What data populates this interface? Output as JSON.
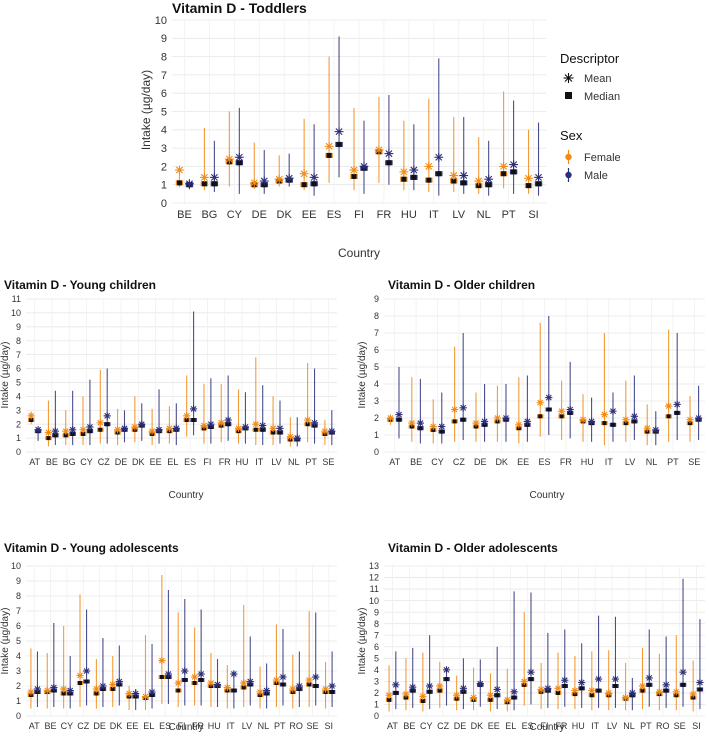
{
  "figure": {
    "description": "Vitamin D intake by country, sex and descriptor across five age groups"
  },
  "legend": {
    "descriptor_title": "Descriptor",
    "mean_label": "Mean",
    "median_label": "Median",
    "sex_title": "Sex",
    "female_label": "Female",
    "male_label": "Male"
  },
  "colors": {
    "female": "#f28a16",
    "male": "#2c2f7a",
    "grid": "#e6e6e6"
  },
  "chart_data": [
    {
      "type": "error-bar scatter",
      "title": "Vitamin D - Toddlers",
      "xlabel": "Country",
      "ylabel": "Intake (µg/day)",
      "ylim": [
        0,
        10
      ],
      "yticks": [
        0,
        1,
        2,
        3,
        4,
        5,
        6,
        7,
        8,
        9,
        10
      ],
      "categories": [
        "BE",
        "BG",
        "CY",
        "DE",
        "DK",
        "EE",
        "ES",
        "FI",
        "FR",
        "HU",
        "IT",
        "LV",
        "NL",
        "PT",
        "SI"
      ],
      "series": [
        {
          "name": "Female",
          "median": [
            1.1,
            1.05,
            2.25,
            1.0,
            1.2,
            1.0,
            2.6,
            1.45,
            2.8,
            1.3,
            1.25,
            1.2,
            0.95,
            1.6,
            0.95
          ],
          "mean": [
            1.8,
            1.4,
            2.4,
            1.1,
            1.3,
            1.6,
            3.1,
            1.8,
            2.9,
            1.7,
            2.0,
            1.5,
            1.2,
            2.0,
            1.35
          ],
          "low": [
            0.85,
            0.7,
            0.9,
            0.75,
            0.9,
            0.7,
            1.1,
            0.7,
            1.1,
            0.7,
            0.6,
            0.6,
            0.5,
            0.8,
            0.5
          ],
          "high": [
            1.9,
            4.1,
            5.0,
            3.3,
            2.6,
            4.6,
            8.0,
            5.2,
            5.8,
            4.5,
            5.7,
            4.7,
            3.6,
            6.1,
            4.0
          ]
        },
        {
          "name": "Male",
          "median": [
            1.0,
            1.05,
            2.2,
            1.0,
            1.25,
            1.05,
            3.2,
            1.9,
            2.2,
            1.4,
            1.6,
            1.1,
            1.0,
            1.7,
            1.05
          ],
          "mean": [
            1.05,
            1.4,
            2.5,
            1.2,
            1.35,
            1.4,
            3.9,
            2.0,
            2.7,
            1.8,
            2.5,
            1.5,
            1.3,
            2.1,
            1.4
          ],
          "low": [
            0.75,
            0.6,
            0.5,
            0.5,
            0.9,
            0.4,
            1.4,
            0.5,
            1.0,
            0.7,
            0.4,
            0.5,
            0.4,
            0.5,
            0.4
          ],
          "high": [
            1.3,
            3.4,
            5.2,
            2.9,
            2.7,
            4.3,
            9.1,
            4.5,
            5.9,
            4.3,
            7.9,
            4.7,
            3.4,
            5.6,
            4.4
          ]
        }
      ]
    },
    {
      "type": "error-bar scatter",
      "title": "Vitamin D - Young children",
      "xlabel": "Country",
      "ylabel": "Intake (µg/day)",
      "ylim": [
        0,
        11
      ],
      "yticks": [
        0,
        1,
        2,
        3,
        4,
        5,
        6,
        7,
        8,
        9,
        10,
        11
      ],
      "categories": [
        "AT",
        "BE",
        "BG",
        "CY",
        "CZ",
        "DE",
        "DK",
        "EE",
        "EL",
        "ES",
        "FI",
        "FR",
        "HU",
        "IT",
        "LV",
        "NL",
        "PT",
        "SE"
      ],
      "series": [
        {
          "name": "Female",
          "median": [
            2.3,
            1.0,
            1.2,
            1.3,
            1.6,
            1.4,
            1.6,
            1.3,
            1.5,
            2.3,
            1.7,
            1.9,
            1.5,
            1.6,
            1.4,
            0.9,
            2.0,
            1.3
          ],
          "mean": [
            2.6,
            1.4,
            1.5,
            1.6,
            2.1,
            1.6,
            1.8,
            1.5,
            1.7,
            2.6,
            1.9,
            2.1,
            1.7,
            2.0,
            1.7,
            1.1,
            2.3,
            1.5
          ],
          "low": [
            2.0,
            0.4,
            0.5,
            0.5,
            0.6,
            0.5,
            0.7,
            0.5,
            0.6,
            1.1,
            0.6,
            0.7,
            0.6,
            0.5,
            0.5,
            0.4,
            0.7,
            0.5
          ],
          "high": [
            2.9,
            3.7,
            3.0,
            4.0,
            5.9,
            3.1,
            4.0,
            3.1,
            3.3,
            5.5,
            4.9,
            4.9,
            4.5,
            6.8,
            4.0,
            2.5,
            6.4,
            2.3
          ]
        },
        {
          "name": "Male",
          "median": [
            1.5,
            1.2,
            1.3,
            1.5,
            2.0,
            1.6,
            1.9,
            1.5,
            1.6,
            2.3,
            1.8,
            2.0,
            1.7,
            1.6,
            1.4,
            0.9,
            1.9,
            1.4
          ],
          "mean": [
            1.6,
            1.5,
            1.6,
            1.8,
            2.6,
            1.7,
            2.0,
            1.6,
            1.7,
            3.1,
            2.0,
            2.3,
            1.8,
            1.9,
            1.7,
            1.0,
            2.1,
            1.5
          ],
          "low": [
            0.8,
            0.5,
            0.5,
            0.5,
            0.6,
            0.7,
            0.8,
            0.6,
            0.5,
            1.2,
            0.6,
            0.8,
            0.6,
            0.5,
            0.6,
            0.4,
            0.6,
            0.5
          ],
          "high": [
            1.8,
            4.4,
            4.4,
            5.2,
            6.0,
            3.0,
            3.5,
            4.5,
            3.5,
            10.1,
            5.3,
            5.5,
            4.3,
            4.8,
            3.7,
            2.5,
            6.0,
            3.0
          ]
        }
      ]
    },
    {
      "type": "error-bar scatter",
      "title": "Vitamin D - Older children",
      "xlabel": "Country",
      "ylabel": "Intake (µg/day)",
      "ylim": [
        0,
        9
      ],
      "yticks": [
        0,
        1,
        2,
        3,
        4,
        5,
        6,
        7,
        8,
        9
      ],
      "categories": [
        "AT",
        "BE",
        "CY",
        "CZ",
        "DE",
        "DK",
        "EE",
        "ES",
        "FR",
        "HU",
        "IT",
        "LV",
        "NL",
        "PT",
        "SE"
      ],
      "series": [
        {
          "name": "Female",
          "median": [
            1.9,
            1.5,
            1.3,
            1.8,
            1.5,
            1.8,
            1.4,
            2.1,
            2.1,
            1.8,
            1.7,
            1.7,
            1.2,
            2.1,
            1.7
          ],
          "mean": [
            2.0,
            1.7,
            1.5,
            2.5,
            1.7,
            2.0,
            1.6,
            2.9,
            2.4,
            1.9,
            2.2,
            1.9,
            1.4,
            2.7,
            1.9
          ],
          "low": [
            1.6,
            0.6,
            0.5,
            0.6,
            0.6,
            0.6,
            0.5,
            0.9,
            0.7,
            0.6,
            0.4,
            0.6,
            0.4,
            0.6,
            0.6
          ],
          "high": [
            2.2,
            4.4,
            3.1,
            6.2,
            3.5,
            3.9,
            4.4,
            7.6,
            4.2,
            3.4,
            7.0,
            4.2,
            2.8,
            7.2,
            3.3
          ]
        },
        {
          "name": "Male",
          "median": [
            1.9,
            1.4,
            1.2,
            1.9,
            1.6,
            1.9,
            1.6,
            2.5,
            2.3,
            1.7,
            1.6,
            1.8,
            1.2,
            2.3,
            1.9
          ],
          "mean": [
            2.2,
            1.7,
            1.5,
            2.6,
            1.8,
            2.0,
            1.8,
            3.2,
            2.5,
            1.8,
            2.4,
            2.1,
            1.3,
            2.8,
            2.0
          ],
          "low": [
            0.8,
            0.5,
            0.5,
            0.7,
            0.6,
            0.6,
            0.6,
            1.0,
            0.8,
            0.6,
            0.6,
            0.7,
            0.4,
            0.7,
            0.7
          ],
          "high": [
            5.0,
            4.3,
            3.5,
            7.0,
            4.0,
            4.0,
            4.5,
            8.0,
            5.3,
            3.2,
            3.5,
            4.5,
            2.4,
            7.0,
            3.9
          ]
        }
      ]
    },
    {
      "type": "error-bar scatter",
      "title": "Vitamin D - Young adolescents",
      "xlabel": "Country",
      "ylabel": "Intake (µg/day)",
      "ylim": [
        0,
        10
      ],
      "yticks": [
        0,
        1,
        2,
        3,
        4,
        5,
        6,
        7,
        8,
        9,
        10
      ],
      "categories": [
        "AT",
        "BE",
        "CY",
        "CZ",
        "DE",
        "DK",
        "EE",
        "EL",
        "ES",
        "FI",
        "FR",
        "HU",
        "IT",
        "LV",
        "NL",
        "PT",
        "RO",
        "SE",
        "SI"
      ],
      "series": [
        {
          "name": "Female",
          "median": [
            1.4,
            1.6,
            1.5,
            2.2,
            1.5,
            1.8,
            1.3,
            1.2,
            2.6,
            1.7,
            2.2,
            2.0,
            1.7,
            1.9,
            1.4,
            2.2,
            1.6,
            2.1,
            1.6
          ],
          "mean": [
            1.6,
            1.7,
            1.8,
            2.7,
            1.8,
            2.1,
            1.5,
            1.3,
            3.7,
            2.2,
            2.6,
            2.2,
            1.9,
            2.2,
            1.6,
            2.4,
            1.8,
            2.4,
            1.8
          ],
          "low": [
            0.5,
            0.5,
            0.5,
            0.6,
            0.5,
            0.6,
            0.4,
            0.4,
            0.8,
            0.6,
            0.7,
            0.6,
            0.5,
            0.6,
            0.5,
            0.6,
            0.5,
            0.6,
            0.5
          ],
          "high": [
            4.5,
            4.2,
            6.0,
            8.1,
            3.8,
            4.0,
            2.0,
            5.4,
            9.4,
            6.9,
            5.9,
            4.2,
            3.4,
            7.4,
            3.3,
            6.1,
            4.1,
            7.0,
            3.6
          ]
        },
        {
          "name": "Male",
          "median": [
            1.6,
            1.7,
            1.5,
            2.3,
            1.8,
            2.1,
            1.3,
            1.4,
            2.6,
            2.4,
            2.4,
            2.0,
            1.7,
            2.1,
            1.5,
            2.1,
            1.8,
            2.0,
            1.6
          ],
          "mean": [
            1.8,
            1.9,
            1.7,
            3.0,
            2.0,
            2.3,
            1.5,
            1.6,
            2.8,
            3.0,
            2.8,
            2.1,
            2.8,
            2.3,
            1.7,
            2.6,
            2.0,
            2.6,
            2.0
          ],
          "low": [
            0.6,
            0.6,
            0.5,
            0.7,
            0.6,
            0.7,
            0.4,
            0.5,
            0.8,
            0.7,
            0.7,
            0.6,
            0.5,
            0.7,
            0.5,
            0.7,
            0.6,
            0.7,
            0.6
          ],
          "high": [
            4.3,
            6.2,
            4.0,
            7.1,
            5.2,
            4.7,
            1.8,
            4.8,
            8.4,
            7.8,
            7.1,
            3.8,
            3.0,
            5.3,
            3.5,
            5.8,
            4.3,
            6.9,
            4.3
          ]
        }
      ]
    },
    {
      "type": "error-bar scatter",
      "title": "Vitamin D - Older adolescents",
      "xlabel": "Country",
      "ylabel": "Intake (µg/day)",
      "ylim": [
        0,
        13
      ],
      "yticks": [
        0,
        1,
        2,
        3,
        4,
        5,
        6,
        7,
        8,
        9,
        10,
        11,
        12,
        13
      ],
      "categories": [
        "AT",
        "BE",
        "CY",
        "CZ",
        "DE",
        "DK",
        "EE",
        "EL",
        "ES",
        "FI",
        "FR",
        "HU",
        "IT",
        "LV",
        "NL",
        "PT",
        "RO",
        "SE",
        "SI"
      ],
      "series": [
        {
          "name": "Female",
          "median": [
            1.4,
            1.6,
            1.3,
            2.2,
            1.5,
            1.4,
            1.4,
            1.2,
            2.7,
            2.1,
            2.0,
            1.9,
            1.8,
            1.8,
            1.5,
            2.2,
            1.9,
            1.8,
            1.6
          ],
          "mean": [
            1.8,
            1.9,
            1.7,
            2.6,
            1.8,
            1.6,
            1.8,
            1.4,
            3.0,
            2.3,
            2.4,
            2.2,
            2.2,
            2.0,
            1.6,
            2.6,
            2.1,
            2.1,
            1.9
          ],
          "low": [
            0.4,
            0.5,
            0.4,
            0.7,
            0.5,
            0.5,
            0.4,
            0.4,
            0.9,
            0.6,
            0.6,
            0.6,
            0.5,
            0.5,
            0.5,
            0.6,
            0.5,
            0.5,
            0.4
          ],
          "high": [
            4.4,
            5.0,
            5.5,
            4.7,
            3.5,
            4.2,
            3.7,
            4.1,
            9.0,
            4.6,
            5.5,
            5.2,
            5.6,
            5.7,
            4.6,
            5.9,
            5.4,
            7.0,
            4.8
          ]
        },
        {
          "name": "Male",
          "median": [
            2.0,
            2.2,
            2.1,
            3.2,
            2.1,
            2.7,
            1.8,
            1.6,
            3.2,
            2.2,
            2.6,
            2.4,
            2.2,
            2.6,
            1.8,
            2.7,
            2.2,
            2.7,
            2.3
          ],
          "mean": [
            2.7,
            2.5,
            2.6,
            4.0,
            2.4,
            2.8,
            2.3,
            2.1,
            3.8,
            2.4,
            3.1,
            2.9,
            3.2,
            3.2,
            2.0,
            3.3,
            2.7,
            3.8,
            2.9
          ],
          "low": [
            0.6,
            0.7,
            0.6,
            0.9,
            0.6,
            0.8,
            0.6,
            0.5,
            1.0,
            0.7,
            0.8,
            0.7,
            0.7,
            0.7,
            0.5,
            0.8,
            0.7,
            0.8,
            0.6
          ],
          "high": [
            5.6,
            5.9,
            7.0,
            4.1,
            5.0,
            4.9,
            6.0,
            10.8,
            10.7,
            7.2,
            7.5,
            6.3,
            8.7,
            8.6,
            3.3,
            7.5,
            6.9,
            11.9,
            8.4
          ]
        }
      ]
    }
  ]
}
